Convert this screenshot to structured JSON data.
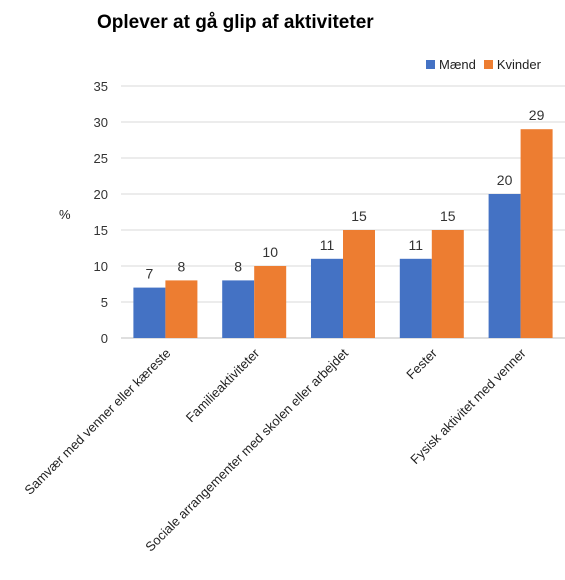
{
  "chart_data": {
    "type": "bar",
    "title": "Oplever at gå glip af aktiviteter",
    "ylabel": "%",
    "xlabel": "",
    "ylim": [
      0,
      35
    ],
    "yticks": [
      0,
      5,
      10,
      15,
      20,
      25,
      30,
      35
    ],
    "grid": true,
    "legend_position": "top-right",
    "categories": [
      "Samvær med venner eller kæreste",
      "Familieaktiviteter",
      "Sociale arrangementer med skolen eller arbejdet",
      "Fester",
      "Fysisk aktivitet med venner"
    ],
    "series": [
      {
        "name": "Mænd",
        "color": "#4472C4",
        "values": [
          7,
          8,
          11,
          11,
          20
        ]
      },
      {
        "name": "Kvinder",
        "color": "#ED7D31",
        "values": [
          8,
          10,
          15,
          15,
          29
        ]
      }
    ]
  }
}
